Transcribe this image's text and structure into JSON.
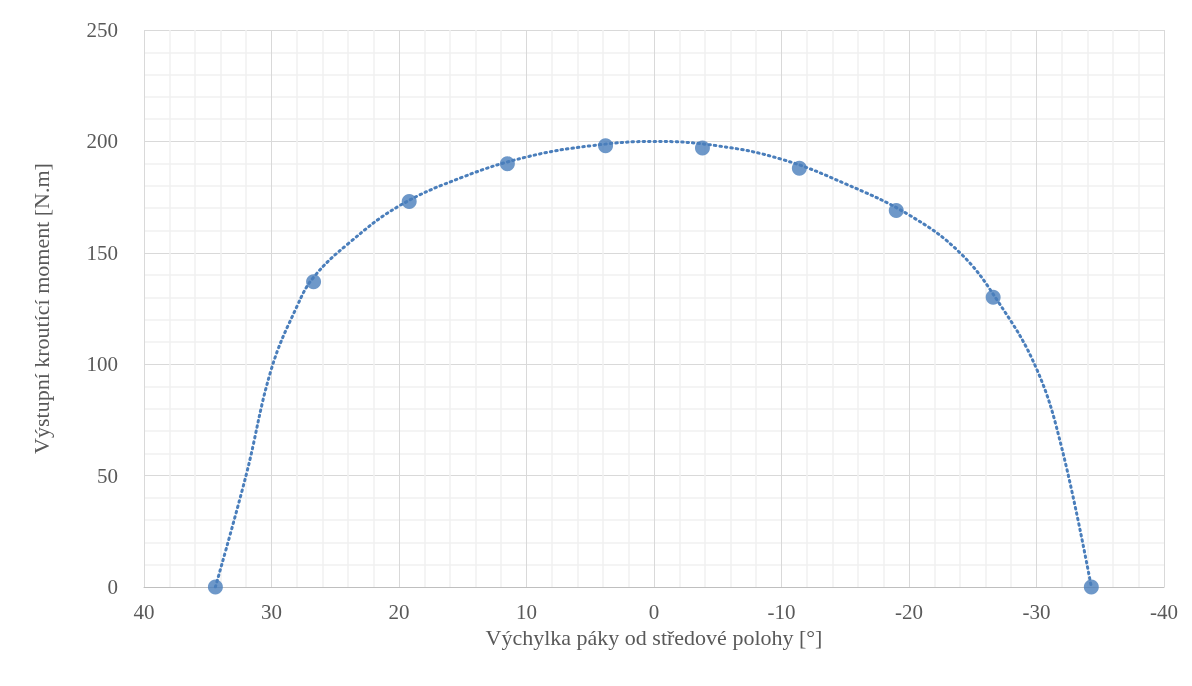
{
  "chart_data": {
    "type": "scatter",
    "xlabel": "Výchylka páky od středové polohy [°]",
    "ylabel": "Výstupní kroutící moment [N.m]",
    "xlim": [
      40,
      -40
    ],
    "xticks": [
      40,
      30,
      20,
      10,
      0,
      -10,
      -20,
      -30,
      -40
    ],
    "ylim": [
      0,
      250
    ],
    "yticks": [
      0,
      50,
      100,
      150,
      200,
      250
    ],
    "grid": true,
    "series": [
      {
        "color": "#4a7ebb",
        "marker": "circle",
        "x": [
          34.4,
          26.7,
          19.2,
          11.5,
          3.8,
          -3.8,
          -11.4,
          -19.0,
          -26.6,
          -34.3
        ],
        "values": [
          0,
          137,
          173,
          190,
          198,
          197,
          188,
          169,
          130,
          0
        ]
      },
      {
        "type": "line",
        "color": "#4a7ebb",
        "marker": "none",
        "line_style": "dotted",
        "x": [
          34.4,
          32,
          30,
          28,
          26.7,
          24,
          20,
          15,
          10,
          5,
          0,
          -5,
          -10,
          -15,
          -20,
          -24,
          -27,
          -30,
          -32,
          -34.3
        ],
        "values": [
          0,
          50,
          98,
          126,
          139,
          154,
          171,
          184,
          193,
          198,
          200,
          198,
          192,
          181,
          167,
          150,
          128,
          98,
          62,
          0
        ]
      }
    ]
  }
}
